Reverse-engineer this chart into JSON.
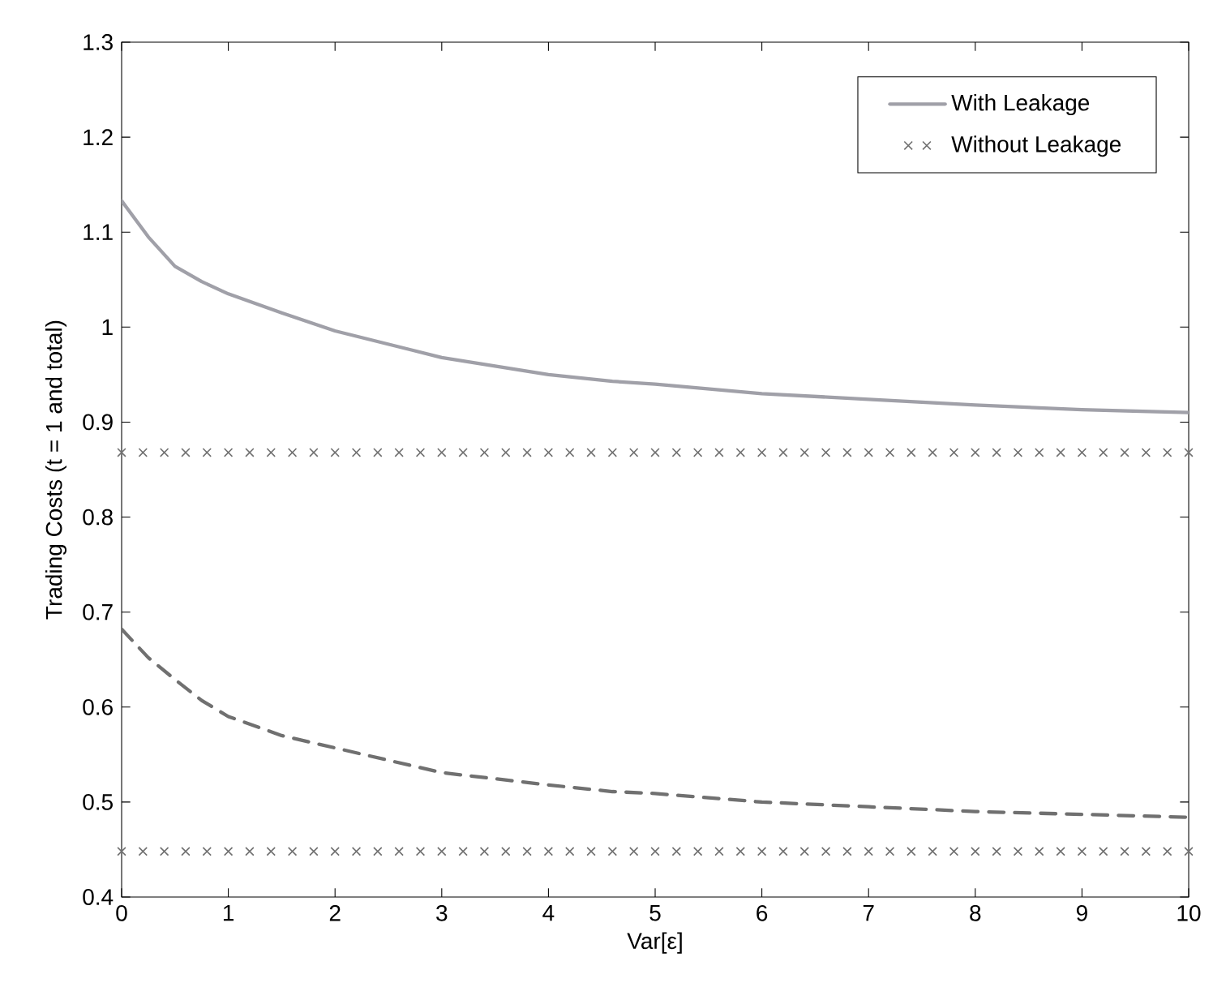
{
  "chart_data": {
    "type": "line",
    "xlabel": "Var[ε]",
    "ylabel": "Trading Costs (t = 1 and total)",
    "xlim": [
      0,
      10
    ],
    "ylim": [
      0.4,
      1.3
    ],
    "xticks": [
      0,
      1,
      2,
      3,
      4,
      5,
      6,
      7,
      8,
      9,
      10
    ],
    "yticks": [
      0.4,
      0.5,
      0.6,
      0.7,
      0.8,
      0.9,
      1,
      1.1,
      1.2,
      1.3
    ],
    "legend": "top right",
    "grid": false,
    "series": [
      {
        "name": "With Leakage",
        "line_style": "solid",
        "color": "#a0a0a8",
        "x": [
          0,
          0.25,
          0.5,
          0.75,
          1,
          1.5,
          2,
          3,
          4,
          4.6,
          5,
          6,
          7,
          8,
          9,
          10
        ],
        "values": [
          1.133,
          1.095,
          1.064,
          1.048,
          1.035,
          1.015,
          0.996,
          0.968,
          0.95,
          0.943,
          0.94,
          0.93,
          0.924,
          0.918,
          0.913,
          0.91
        ]
      },
      {
        "name": "Without Leakage",
        "type": "scatter",
        "marker": "cross",
        "color": "#707070",
        "x": [
          0,
          0.2,
          0.4,
          0.6,
          0.8,
          1,
          1.2,
          1.4,
          1.6,
          1.8,
          2,
          2.2,
          2.4,
          2.6,
          2.8,
          3,
          3.2,
          3.4,
          3.6,
          3.8,
          4,
          4.2,
          4.4,
          4.6,
          4.8,
          5,
          5.2,
          5.4,
          5.6,
          5.8,
          6,
          6.2,
          6.4,
          6.6,
          6.8,
          7,
          7.2,
          7.4,
          7.6,
          7.8,
          8,
          8.2,
          8.4,
          8.6,
          8.8,
          9,
          9.2,
          9.4,
          9.6,
          9.8,
          10
        ],
        "values": [
          0.868,
          0.868,
          0.868,
          0.868,
          0.868,
          0.868,
          0.868,
          0.868,
          0.868,
          0.868,
          0.868,
          0.868,
          0.868,
          0.868,
          0.868,
          0.868,
          0.868,
          0.868,
          0.868,
          0.868,
          0.868,
          0.868,
          0.868,
          0.868,
          0.868,
          0.868,
          0.868,
          0.868,
          0.868,
          0.868,
          0.868,
          0.868,
          0.868,
          0.868,
          0.868,
          0.868,
          0.868,
          0.868,
          0.868,
          0.868,
          0.868,
          0.868,
          0.868,
          0.868,
          0.868,
          0.868,
          0.868,
          0.868,
          0.868,
          0.868,
          0.868
        ]
      },
      {
        "line_style": "dashed",
        "color": "#707070",
        "x": [
          0,
          0.25,
          0.5,
          0.75,
          1,
          1.5,
          2,
          3,
          4,
          4.6,
          5,
          6,
          7,
          8,
          9,
          10
        ],
        "values": [
          0.682,
          0.652,
          0.629,
          0.607,
          0.59,
          0.57,
          0.557,
          0.531,
          0.518,
          0.511,
          0.509,
          0.5,
          0.495,
          0.49,
          0.487,
          0.484
        ]
      },
      {
        "type": "scatter",
        "marker": "cross",
        "color": "#707070",
        "x": [
          0,
          0.2,
          0.4,
          0.6,
          0.8,
          1,
          1.2,
          1.4,
          1.6,
          1.8,
          2,
          2.2,
          2.4,
          2.6,
          2.8,
          3,
          3.2,
          3.4,
          3.6,
          3.8,
          4,
          4.2,
          4.4,
          4.6,
          4.8,
          5,
          5.2,
          5.4,
          5.6,
          5.8,
          6,
          6.2,
          6.4,
          6.6,
          6.8,
          7,
          7.2,
          7.4,
          7.6,
          7.8,
          8,
          8.2,
          8.4,
          8.6,
          8.8,
          9,
          9.2,
          9.4,
          9.6,
          9.8,
          10
        ],
        "values": [
          0.448,
          0.448,
          0.448,
          0.448,
          0.448,
          0.448,
          0.448,
          0.448,
          0.448,
          0.448,
          0.448,
          0.448,
          0.448,
          0.448,
          0.448,
          0.448,
          0.448,
          0.448,
          0.448,
          0.448,
          0.448,
          0.448,
          0.448,
          0.448,
          0.448,
          0.448,
          0.448,
          0.448,
          0.448,
          0.448,
          0.448,
          0.448,
          0.448,
          0.448,
          0.448,
          0.448,
          0.448,
          0.448,
          0.448,
          0.448,
          0.448,
          0.448,
          0.448,
          0.448,
          0.448,
          0.448,
          0.448,
          0.448,
          0.448,
          0.448,
          0.448
        ]
      }
    ]
  }
}
